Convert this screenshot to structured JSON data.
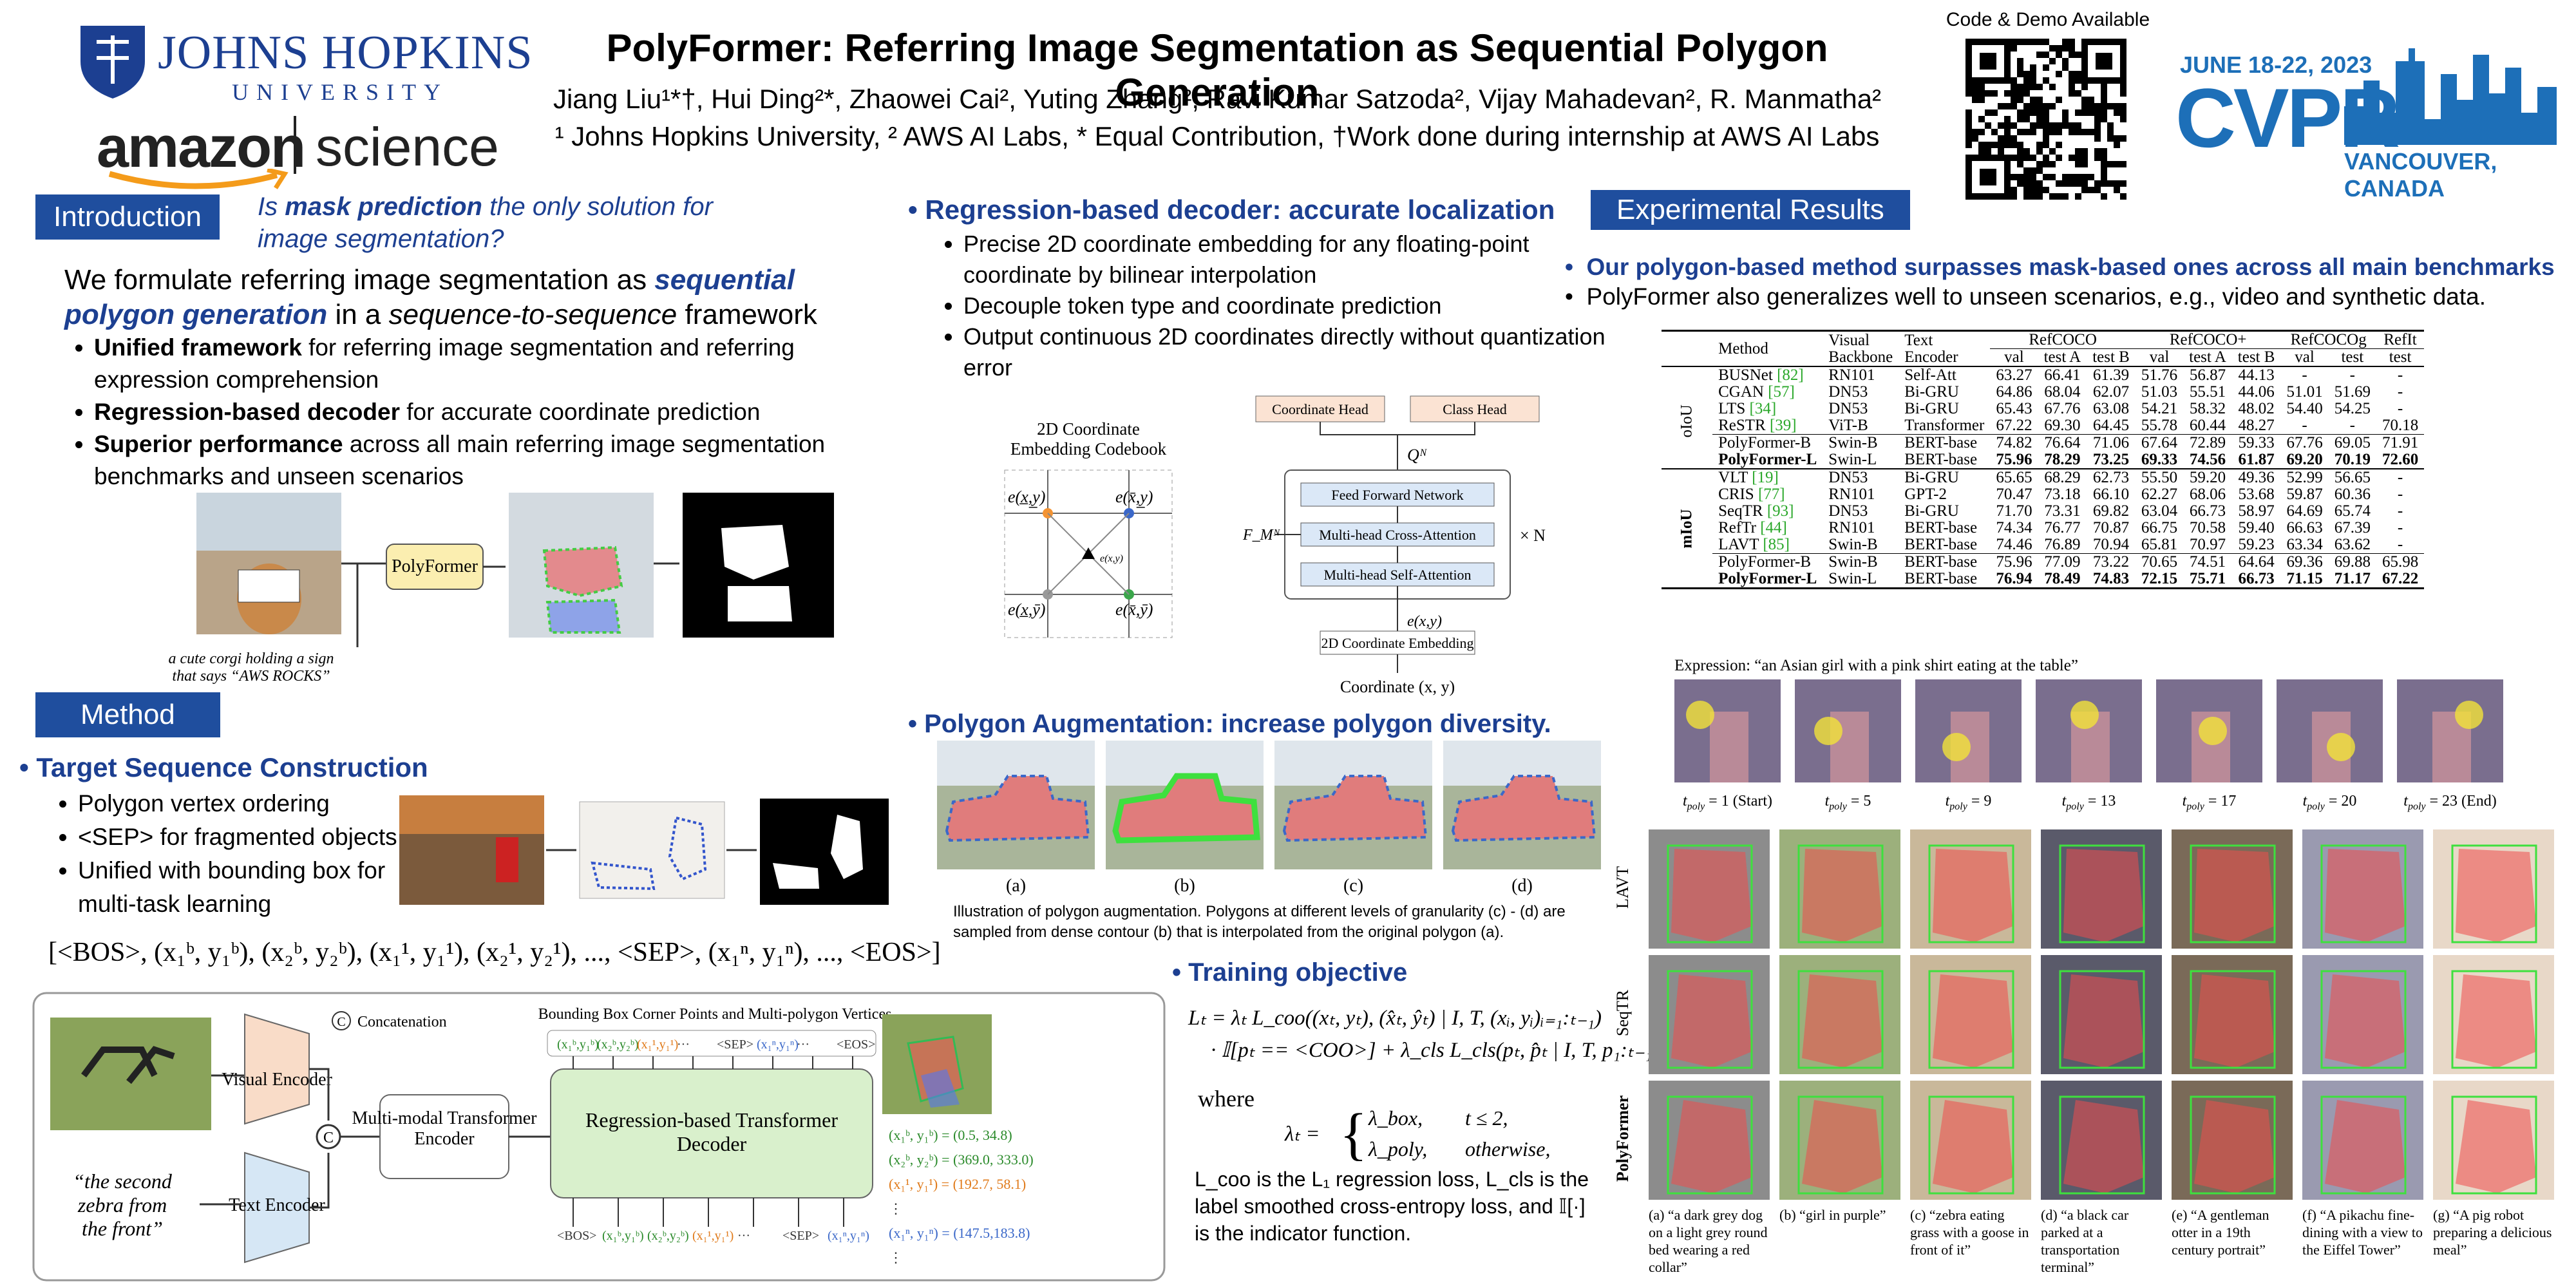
{
  "header": {
    "title": "PolyFormer: Referring Image Segmentation as Sequential Polygon Generation",
    "authors": "Jiang Liu¹*†, Hui Ding²*, Zhaowei Cai², Yuting Zhang², Ravi Kumar Satzoda², Vijay Mahadevan², R. Manmatha²",
    "affiliations": "¹ Johns Hopkins University, ² AWS AI Labs, * Equal Contribution, †Work done during internship at AWS AI Labs",
    "code_demo": "Code & Demo Available"
  },
  "logos": {
    "jhu_name": "JOHNS HOPKINS",
    "jhu_sub": "UNIVERSITY",
    "amazon": "amazon",
    "science": "science",
    "cvpr_date": "JUNE 18-22, 2023",
    "cvpr": "CVPR",
    "cvpr_place": "VANCOUVER, CANADA"
  },
  "introduction": {
    "heading": "Introduction",
    "question": [
      "Is ",
      "mask prediction",
      " the only solution for image segmentation?"
    ],
    "lead": [
      "We formulate referring image segmentation as ",
      "sequential polygon generation",
      " in a ",
      "sequence-to-sequence",
      " framework"
    ],
    "bullets": [
      [
        "Unified framework",
        " for referring image segmentation and referring expression comprehension"
      ],
      [
        "Regression-based decoder",
        " for accurate coordinate prediction"
      ],
      [
        "Superior performance",
        " across all main referring image segmentation benchmarks and unseen scenarios"
      ]
    ],
    "figure": {
      "box": "PolyFormer",
      "caption": "a cute corgi holding a sign that says “AWS ROCKS”"
    }
  },
  "method": {
    "heading": "Method",
    "subheading": "Target Sequence Construction",
    "bullets": [
      "Polygon vertex ordering",
      "<SEP> for fragmented objects",
      "Unified with bounding box for multi-task learning"
    ],
    "sequence": "[<BOS>, (x₁ᵇ, y₁ᵇ), (x₂ᵇ, y₂ᵇ), (x₁¹, y₁¹), (x₂¹, y₂¹), ..., <SEP>, (x₁ⁿ, y₁ⁿ), ..., <EOS>]",
    "figure": {
      "concat": "Concatenation",
      "concat_symbol": "C",
      "vertices_title": "Bounding Box Corner Points and Multi-polygon Vertices",
      "visual_encoder": "Visual Encoder",
      "text_encoder": "Text Encoder",
      "mm_encoder": "Multi-modal Transformer Encoder",
      "decoder": "Regression-based Transformer Decoder",
      "query": "“the second zebra from the front”",
      "out_tokens": [
        "(x₁ᵇ,y₁ᵇ)",
        "(x₂ᵇ,y₂ᵇ)",
        "(x₁¹,y₁¹)",
        "···",
        "<SEP>",
        "(x₁ⁿ,y₁ⁿ)",
        "···",
        "<EOS>"
      ],
      "in_tokens": [
        "<BOS>",
        "(x₁ᵇ,y₁ᵇ)",
        "(x₂ᵇ,y₂ᵇ)",
        "(x₁¹,y₁¹)",
        "···",
        "<SEP>",
        "(x₁ⁿ,y₁ⁿ)"
      ],
      "outputs": [
        "(x₁ᵇ, y₁ᵇ) = (0.5, 34.8)",
        "(x₂ᵇ, y₂ᵇ) = (369.0, 333.0)",
        "(x₁¹, y₁¹) = (192.7, 58.1)",
        "⋮",
        "(x₁ⁿ, y₁ⁿ) = (147.5,183.8)",
        "⋮"
      ]
    }
  },
  "decoder": {
    "heading": "Regression-based decoder: accurate localization",
    "bullets": [
      "Precise 2D coordinate embedding for any floating-point coordinate by bilinear interpolation",
      "Decouple token type and coordinate prediction",
      "Output continuous 2D coordinates directly without quantization error"
    ],
    "figure": {
      "codebook": "2D Coordinate Embedding Codebook",
      "corners": [
        "e(x̲,y̲)",
        "e(x̄,y̲)",
        "e(x̲,ȳ)",
        "e(x̄,ȳ)"
      ],
      "center": "e(x,y)",
      "coord_head": "Coordinate Head",
      "class_head": "Class Head",
      "query": "Qᴺ",
      "ffn": "Feed Forward Network",
      "cross": "Multi-head Cross-Attention",
      "self": "Multi-head Self-Attention",
      "memory": "F_Mᴺ",
      "repeat": "× N",
      "embed_sym": "e(x,y)",
      "embed": "2D Coordinate Embedding",
      "coord": "Coordinate (x, y)"
    }
  },
  "augmentation": {
    "heading": "Polygon Augmentation: increase polygon diversity.",
    "labels": [
      "(a)",
      "(b)",
      "(c)",
      "(d)"
    ],
    "caption": "Illustration of polygon augmentation. Polygons at different levels of granularity (c) - (d) are sampled from dense contour (b) that is interpolated from the original polygon (a)."
  },
  "training": {
    "heading": "Training objective",
    "eq1": "Lₜ = λₜ L_coo((xₜ, yₜ), (x̂ₜ, ŷₜ) | I, T, (xᵢ, yᵢ)ᵢ₌₁:ₜ₋₁)",
    "eq2": "· 𝕀[pₜ == <COO>] + λ_cls L_cls(pₜ, p̂ₜ | I, T, p₁:ₜ₋₁)",
    "where": "where",
    "lambda": "λₜ =",
    "cases": [
      [
        "λ_box,",
        "t ≤ 2,"
      ],
      [
        "λ_poly,",
        "otherwise,"
      ]
    ],
    "notes": "L_coo is the L₁ regression loss, L_cls is the label smoothed cross-entropy loss, and 𝕀[·] is the indicator function."
  },
  "results": {
    "heading": "Experimental Results",
    "bullets": [
      "Our polygon-based method surpasses mask-based ones across all main benchmarks",
      "PolyFormer also generalizes well to unseen scenarios, e.g., video and synthetic data."
    ],
    "table": {
      "head": [
        "Method",
        "Visual Backbone",
        "Text Encoder"
      ],
      "groups": [
        [
          "RefCOCO",
          3
        ],
        [
          "RefCOCO+",
          3
        ],
        [
          "RefCOCOg",
          2
        ],
        [
          "RefIt",
          1
        ]
      ],
      "sub": [
        "val",
        "test A",
        "test B",
        "val",
        "test A",
        "test B",
        "val",
        "test",
        "test"
      ],
      "sections": [
        {
          "label": "oIoU",
          "rows": [
            {
              "method": "BUSNet",
              "ref": "[82]",
              "cells": [
                "RN101",
                "Self-Att",
                "63.27",
                "66.41",
                "61.39",
                "51.76",
                "56.87",
                "44.13",
                "-",
                "-",
                "-"
              ]
            },
            {
              "method": "CGAN",
              "ref": "[57]",
              "cells": [
                "DN53",
                "Bi-GRU",
                "64.86",
                "68.04",
                "62.07",
                "51.03",
                "55.51",
                "44.06",
                "51.01",
                "51.69",
                "-"
              ]
            },
            {
              "method": "LTS",
              "ref": "[34]",
              "cells": [
                "DN53",
                "Bi-GRU",
                "65.43",
                "67.76",
                "63.08",
                "54.21",
                "58.32",
                "48.02",
                "54.40",
                "54.25",
                "-"
              ]
            },
            {
              "method": "ReSTR",
              "ref": "[39]",
              "cells": [
                "ViT-B",
                "Transformer",
                "67.22",
                "69.30",
                "64.45",
                "55.78",
                "60.44",
                "48.27",
                "-",
                "-",
                "70.18"
              ]
            },
            {
              "method": "PolyFormer-B",
              "cells": [
                "Swin-B",
                "BERT-base",
                "74.82",
                "76.64",
                "71.06",
                "67.64",
                "72.89",
                "59.33",
                "67.76",
                "69.05",
                "71.91"
              ]
            },
            {
              "method": "PolyFormer-L",
              "bold": true,
              "cells": [
                "Swin-L",
                "BERT-base",
                "75.96",
                "78.29",
                "73.25",
                "69.33",
                "74.56",
                "61.87",
                "69.20",
                "70.19",
                "72.60"
              ]
            }
          ]
        },
        {
          "label": "mIoU",
          "rows": [
            {
              "method": "VLT",
              "ref": "[19]",
              "cells": [
                "DN53",
                "Bi-GRU",
                "65.65",
                "68.29",
                "62.73",
                "55.50",
                "59.20",
                "49.36",
                "52.99",
                "56.65",
                "-"
              ]
            },
            {
              "method": "CRIS",
              "ref": "[77]",
              "cells": [
                "RN101",
                "GPT-2",
                "70.47",
                "73.18",
                "66.10",
                "62.27",
                "68.06",
                "53.68",
                "59.87",
                "60.36",
                "-"
              ]
            },
            {
              "method": "SeqTR",
              "ref": "[93]",
              "cells": [
                "DN53",
                "Bi-GRU",
                "71.70",
                "73.31",
                "69.82",
                "63.04",
                "66.73",
                "58.97",
                "64.69",
                "65.74",
                "-"
              ]
            },
            {
              "method": "RefTr",
              "ref": "[44]",
              "cells": [
                "RN101",
                "BERT-base",
                "74.34",
                "76.77",
                "70.87",
                "66.75",
                "70.58",
                "59.40",
                "66.63",
                "67.39",
                "-"
              ]
            },
            {
              "method": "LAVT",
              "ref": "[85]",
              "cells": [
                "Swin-B",
                "BERT-base",
                "74.46",
                "76.89",
                "70.94",
                "65.81",
                "70.97",
                "59.23",
                "63.34",
                "63.62",
                "-"
              ]
            },
            {
              "method": "PolyFormer-B",
              "cells": [
                "Swin-B",
                "BERT-base",
                "75.96",
                "77.09",
                "73.22",
                "70.65",
                "74.51",
                "64.64",
                "69.36",
                "69.88",
                "65.98"
              ]
            },
            {
              "method": "PolyFormer-L",
              "bold": true,
              "cells": [
                "Swin-L",
                "BERT-base",
                "76.94",
                "78.49",
                "74.83",
                "72.15",
                "75.71",
                "66.73",
                "71.15",
                "71.17",
                "67.22"
              ]
            }
          ]
        }
      ]
    },
    "expression": "Expression: “an Asian girl with a pink shirt eating at the table”",
    "steps": [
      {
        "t": "t",
        "sub": "poly",
        "rest": " = 1 (Start)"
      },
      {
        "t": "t",
        "sub": "poly",
        "rest": " = 5"
      },
      {
        "t": "t",
        "sub": "poly",
        "rest": " = 9"
      },
      {
        "t": "t",
        "sub": "poly",
        "rest": " = 13"
      },
      {
        "t": "t",
        "sub": "poly",
        "rest": " = 17"
      },
      {
        "t": "t",
        "sub": "poly",
        "rest": " = 20"
      },
      {
        "t": "t",
        "sub": "poly",
        "rest": " = 23 (End)"
      }
    ],
    "rows": [
      "LAVT",
      "SeqTR",
      "PolyFormer"
    ],
    "captions": [
      "(a) “a dark grey dog on a light grey round bed wearing a red collar”",
      "(b) “girl in purple”",
      "(c) “zebra eating grass with a goose in front of it”",
      "(d) “a black car parked at a transportation terminal”",
      "(e) “A gentleman otter in a 19th century portrait”",
      "(f) “A pikachu fine-dining with a view to the Eiffel Tower”",
      "(g) “A pig robot preparing a delicious meal”"
    ]
  }
}
